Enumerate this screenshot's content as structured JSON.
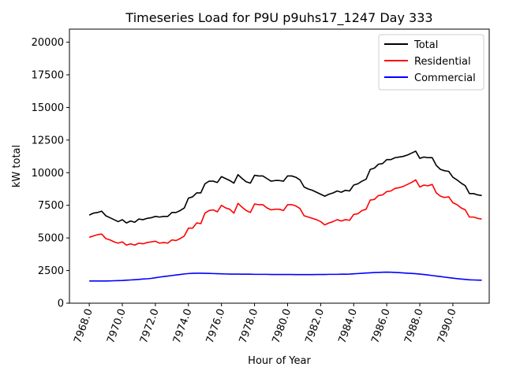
{
  "chart_data": {
    "type": "line",
    "title": "Timeseries Load for P9U p9uhs17_1247  Day 333",
    "xlabel": "Hour of Year",
    "ylabel": "kW total",
    "xlim": [
      7966.8,
      7992.2
    ],
    "ylim": [
      0,
      21000
    ],
    "xticks": [
      7968.0,
      7970.0,
      7972.0,
      7974.0,
      7976.0,
      7978.0,
      7980.0,
      7982.0,
      7984.0,
      7986.0,
      7988.0,
      7990.0
    ],
    "xtick_labels": [
      "7968.0",
      "7970.0",
      "7972.0",
      "7974.0",
      "7976.0",
      "7978.0",
      "7980.0",
      "7982.0",
      "7984.0",
      "7986.0",
      "7988.0",
      "7990.0"
    ],
    "yticks": [
      0,
      2500,
      5000,
      7500,
      10000,
      12500,
      15000,
      17500,
      20000
    ],
    "ytick_labels": [
      "0",
      "2500",
      "5000",
      "7500",
      "10000",
      "12500",
      "15000",
      "17500",
      "20000"
    ],
    "grid": false,
    "legend_position": "top-right",
    "x_start": 7968.0,
    "x_step": 0.25,
    "series": [
      {
        "name": "Total",
        "color": "#000000",
        "values": [
          6750,
          6900,
          6950,
          7050,
          6700,
          6550,
          6400,
          6250,
          6400,
          6150,
          6300,
          6200,
          6450,
          6400,
          6500,
          6550,
          6650,
          6600,
          6650,
          6650,
          6950,
          6950,
          7100,
          7300,
          8050,
          8150,
          8450,
          8450,
          9150,
          9350,
          9350,
          9250,
          9700,
          9550,
          9400,
          9200,
          9850,
          9550,
          9300,
          9200,
          9800,
          9750,
          9750,
          9550,
          9350,
          9400,
          9400,
          9350,
          9750,
          9750,
          9650,
          9450,
          8900,
          8750,
          8650,
          8500,
          8350,
          8200,
          8350,
          8450,
          8600,
          8500,
          8650,
          8600,
          9050,
          9150,
          9350,
          9500,
          10250,
          10350,
          10650,
          10700,
          11000,
          11000,
          11150,
          11200,
          11250,
          11350,
          11500,
          11650,
          11100,
          11200,
          11150,
          11150,
          10550,
          10250,
          10150,
          10100,
          9650,
          9450,
          9200,
          9000,
          8400,
          8400,
          8300,
          8250
        ]
      },
      {
        "name": "Residential",
        "color": "#ff0000",
        "values": [
          5050,
          5150,
          5250,
          5300,
          4950,
          4850,
          4700,
          4600,
          4700,
          4450,
          4550,
          4450,
          4600,
          4550,
          4650,
          4700,
          4750,
          4600,
          4650,
          4600,
          4850,
          4800,
          4950,
          5150,
          5750,
          5750,
          6150,
          6100,
          6900,
          7100,
          7150,
          7000,
          7500,
          7300,
          7200,
          6900,
          7650,
          7350,
          7100,
          6950,
          7600,
          7550,
          7550,
          7300,
          7150,
          7200,
          7200,
          7100,
          7550,
          7550,
          7450,
          7250,
          6700,
          6600,
          6500,
          6400,
          6250,
          6000,
          6150,
          6250,
          6400,
          6300,
          6400,
          6350,
          6800,
          6850,
          7100,
          7200,
          7900,
          7950,
          8250,
          8300,
          8550,
          8600,
          8800,
          8850,
          8950,
          9100,
          9250,
          9450,
          8900,
          9050,
          9000,
          9100,
          8450,
          8200,
          8100,
          8150,
          7700,
          7550,
          7300,
          7150,
          6600,
          6600,
          6500,
          6450
        ]
      },
      {
        "name": "Commercial",
        "color": "#0000ff",
        "values": [
          1700,
          1700,
          1700,
          1700,
          1700,
          1710,
          1720,
          1730,
          1740,
          1760,
          1780,
          1800,
          1820,
          1850,
          1870,
          1900,
          1950,
          2000,
          2040,
          2080,
          2120,
          2160,
          2200,
          2240,
          2270,
          2290,
          2300,
          2300,
          2290,
          2280,
          2270,
          2260,
          2250,
          2240,
          2230,
          2230,
          2230,
          2220,
          2220,
          2220,
          2210,
          2210,
          2210,
          2210,
          2200,
          2200,
          2200,
          2200,
          2200,
          2200,
          2190,
          2190,
          2190,
          2190,
          2190,
          2200,
          2200,
          2200,
          2210,
          2210,
          2210,
          2220,
          2220,
          2230,
          2250,
          2270,
          2290,
          2310,
          2330,
          2350,
          2360,
          2370,
          2380,
          2370,
          2360,
          2340,
          2320,
          2300,
          2280,
          2260,
          2230,
          2200,
          2160,
          2120,
          2080,
          2040,
          2000,
          1960,
          1920,
          1880,
          1850,
          1820,
          1790,
          1780,
          1770,
          1760
        ]
      }
    ]
  }
}
